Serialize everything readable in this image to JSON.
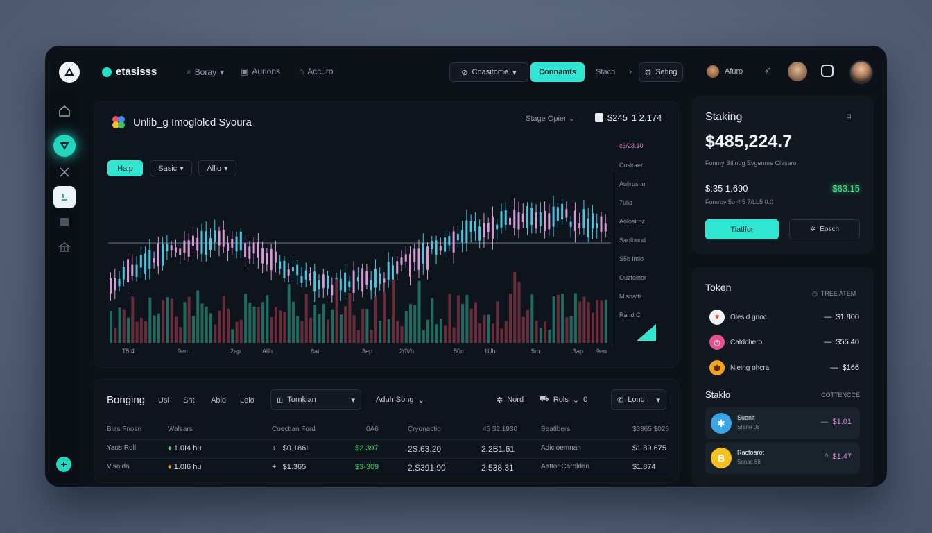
{
  "topbar": {
    "brand": "etasisss",
    "nav": [
      "Boray",
      "Aurions",
      "Accuro"
    ],
    "search_label": "Cnasitome",
    "connect_label": "Connamts",
    "stach_label": "Stach",
    "setting_label": "Seting",
    "user_name": "Afuro"
  },
  "chart": {
    "title": "Unlib_g Imoglolcd Syoura",
    "stage_label": "Stage Opier",
    "price": "$245",
    "price_extra": "1 2.174",
    "controls": [
      "Halp",
      "Sasic",
      "Allio"
    ],
    "right_labels": [
      "c3/23.10",
      "Cosiraer",
      "Aulirusno",
      "7ulla",
      "Aolosirnz",
      "Saolbond",
      "S5b imio",
      "Ouzfolnor",
      "Misnatti",
      "Rand C"
    ],
    "time_labels": [
      "T5I4",
      "9em",
      "2ap",
      "Allh",
      "6at",
      "3ep",
      "20Vh",
      "50m",
      "1Uh",
      "5m",
      "3ap",
      "9en"
    ]
  },
  "chart_data": {
    "type": "candlestick",
    "note_colors": {
      "up": "#4cc6df",
      "down": "#d79ad4"
    },
    "volume_colors": [
      "#1f6b60",
      "#6b2c3a"
    ]
  },
  "table": {
    "title": "Bonging",
    "tabs": [
      "Usi",
      "Sht",
      "Abid",
      "Lelo"
    ],
    "select_token": "Tornkian",
    "select_sort": "Aduh Song",
    "nord_label": "Nord",
    "rois_label": "Rols",
    "rois_value": "0",
    "land_label": "Lond",
    "columns": [
      "Blas Fnosn",
      "Walsars",
      "Coectian Ford",
      "0A6",
      "Cryonactio",
      "45 $2.1930",
      "Beatlbers",
      "$3365 $025"
    ],
    "rows": [
      {
        "name": "Yaus Roll",
        "wallet": "1.0I4 hu",
        "price": "$0.186I",
        "change": "$2.397",
        "a": "2S.63.20",
        "b": "2.2B1.61",
        "c": "Adicioemnan",
        "d": "$1 89.675"
      },
      {
        "name": "Visaida",
        "wallet": "1.0I6 hu",
        "price": "$1.365",
        "change": "$3-309",
        "a": "2.S391.90",
        "b": "2.538.31",
        "c": "Aattor Caroldan",
        "d": "$1.874"
      }
    ]
  },
  "staking": {
    "title": "Staking",
    "balance": "$485,224.7",
    "subtitle": "Fonmy Stlinog Evgenme Chisaro",
    "value_left": "$:35  1.690",
    "value_right": "$63.15",
    "sub2": "Fomroy 5o 4 5 7/LL5 0.0",
    "btn_primary": "Tiatlfor",
    "btn_secondary": "Eosch"
  },
  "tokens": {
    "title": "Token",
    "filter": "TREE ATEM",
    "items": [
      {
        "name": "Olesid gnoc",
        "value": "$1.800",
        "color": "#f0f2f5",
        "glyph": "♥"
      },
      {
        "name": "Catdchero",
        "value": "$55.40",
        "color": "#e6528d",
        "glyph": "◎"
      },
      {
        "name": "Nieing ohcra",
        "value": "$166",
        "color": "#f3a320",
        "glyph": "⬢"
      }
    ],
    "staking_title": "Staklo",
    "staking_filter": "COTTENCCE",
    "stake_rows": [
      {
        "name": "Suonit",
        "sub": "Srane 08",
        "value": "$1.01",
        "icon_color": "#3aa6e8",
        "glyph": "✱",
        "dir": "—"
      },
      {
        "name": "Racfoarot",
        "sub": "Sonas 68",
        "value": "$1.47",
        "icon_color": "#f4c020",
        "glyph": "B",
        "dir": "^"
      }
    ]
  }
}
